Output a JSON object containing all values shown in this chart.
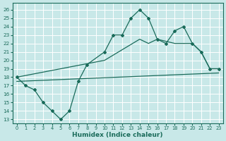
{
  "xlabel": "Humidex (Indice chaleur)",
  "background_color": "#c8e8e8",
  "line_color": "#1a6b5a",
  "grid_color": "#b0d8d8",
  "xlim": [
    -0.5,
    23.5
  ],
  "ylim": [
    12.5,
    26.8
  ],
  "yticks": [
    13,
    14,
    15,
    16,
    17,
    18,
    19,
    20,
    21,
    22,
    23,
    24,
    25,
    26
  ],
  "xticks": [
    0,
    1,
    2,
    3,
    4,
    5,
    6,
    7,
    8,
    9,
    10,
    11,
    12,
    13,
    14,
    15,
    16,
    17,
    18,
    19,
    20,
    21,
    22,
    23
  ],
  "curve1_x": [
    0,
    1,
    2,
    3,
    4,
    5,
    6,
    7,
    8,
    10,
    11,
    12,
    13,
    14,
    15,
    16,
    17,
    18,
    19,
    20,
    21,
    22,
    23
  ],
  "curve1_y": [
    18,
    17,
    16.5,
    15,
    14,
    13,
    14,
    17.5,
    19.5,
    21,
    23,
    23,
    25,
    26,
    25,
    22.5,
    22,
    23.5,
    24,
    22,
    21,
    19,
    19
  ],
  "curve2_x": [
    0,
    10,
    14,
    15,
    16,
    18,
    19,
    20,
    21,
    22,
    23
  ],
  "curve2_y": [
    18,
    20,
    22.5,
    22,
    22.5,
    22,
    22,
    22,
    21,
    19,
    19
  ],
  "line3_x": [
    0,
    23
  ],
  "line3_y": [
    17.5,
    18.5
  ]
}
